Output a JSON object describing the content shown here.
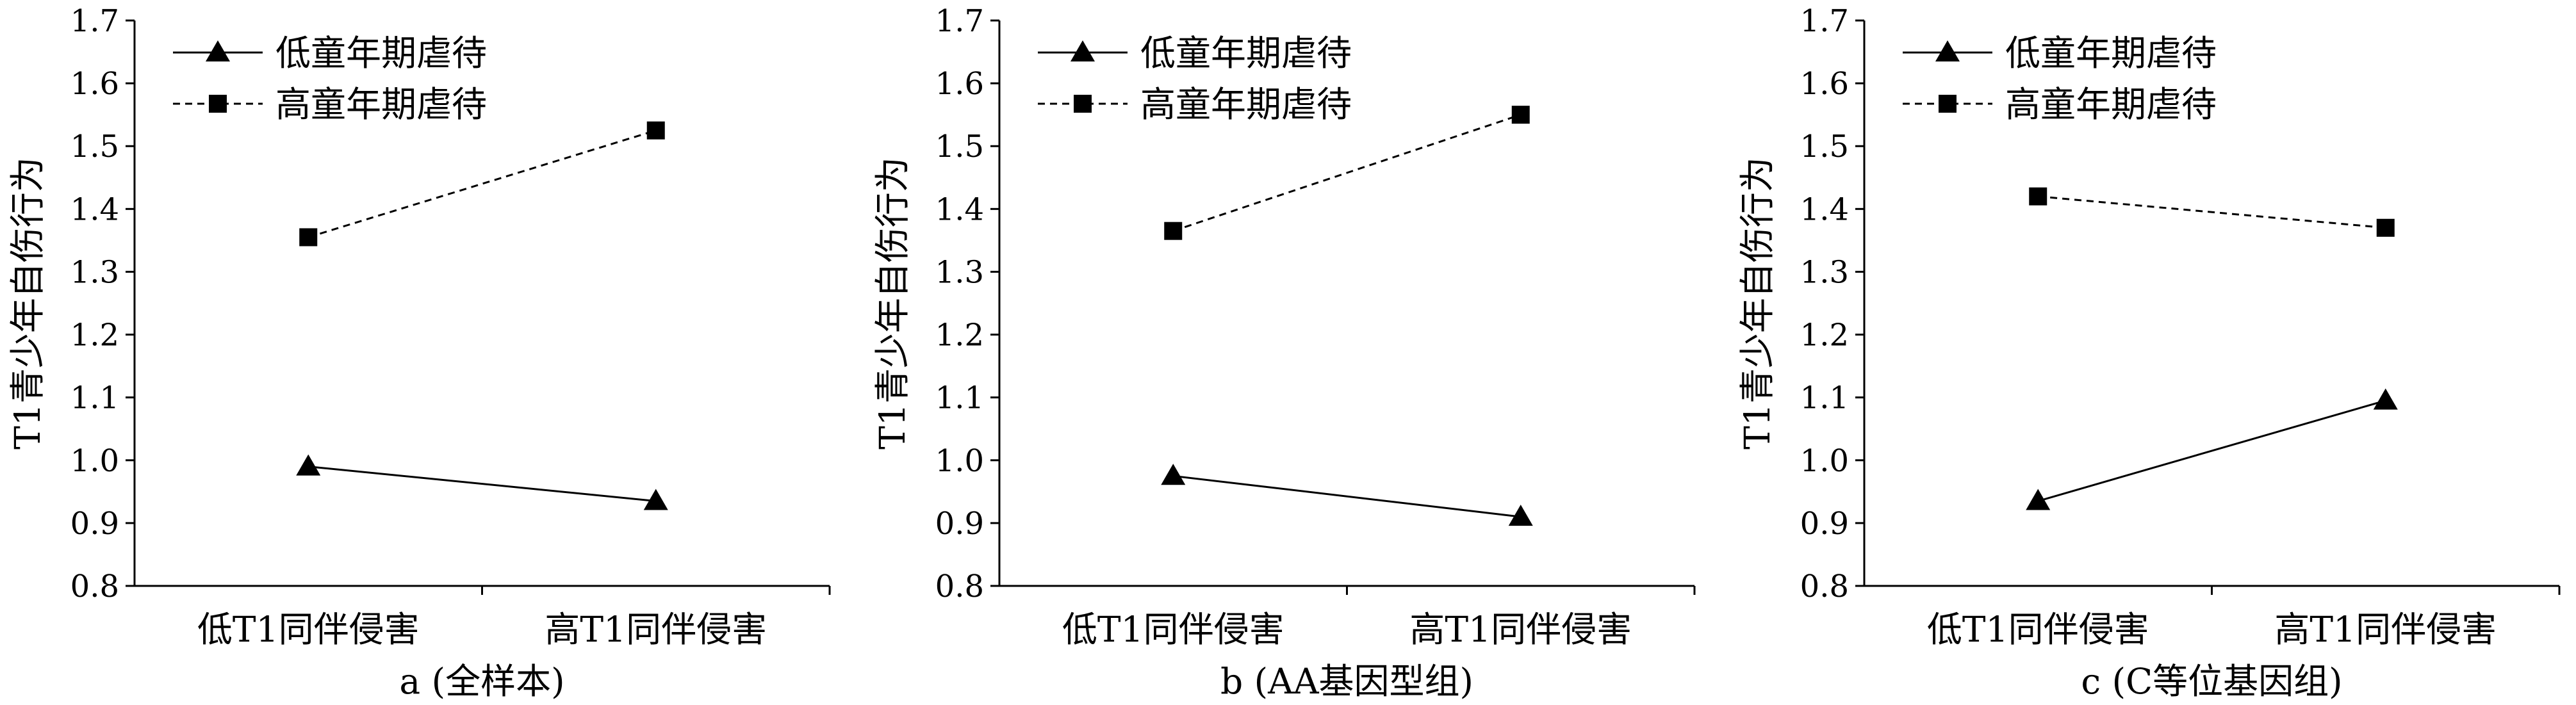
{
  "chart_data": [
    {
      "type": "line",
      "title": "a (全样本)",
      "ylabel": "T1青少年自伤行为",
      "categories": [
        "低T1同伴侵害",
        "高T1同伴侵害"
      ],
      "ylim": [
        0.8,
        1.7
      ],
      "yticks": [
        "0.8",
        "0.9",
        "1.0",
        "1.1",
        "1.2",
        "1.3",
        "1.4",
        "1.5",
        "1.6",
        "1.7"
      ],
      "legend_position": "top-left",
      "series": [
        {
          "name": "低童年期虐待",
          "values": [
            0.99,
            0.935
          ],
          "marker": "triangle",
          "line": "solid"
        },
        {
          "name": "高童年期虐待",
          "values": [
            1.355,
            1.525
          ],
          "marker": "square",
          "line": "dashed"
        }
      ]
    },
    {
      "type": "line",
      "title": "b (AA基因型组)",
      "ylabel": "T1青少年自伤行为",
      "categories": [
        "低T1同伴侵害",
        "高T1同伴侵害"
      ],
      "ylim": [
        0.8,
        1.7
      ],
      "yticks": [
        "0.8",
        "0.9",
        "1.0",
        "1.1",
        "1.2",
        "1.3",
        "1.4",
        "1.5",
        "1.6",
        "1.7"
      ],
      "legend_position": "top-left",
      "series": [
        {
          "name": "低童年期虐待",
          "values": [
            0.975,
            0.91
          ],
          "marker": "triangle",
          "line": "solid"
        },
        {
          "name": "高童年期虐待",
          "values": [
            1.365,
            1.55
          ],
          "marker": "square",
          "line": "dashed"
        }
      ]
    },
    {
      "type": "line",
      "title": "c (C等位基因组)",
      "ylabel": "T1青少年自伤行为",
      "categories": [
        "低T1同伴侵害",
        "高T1同伴侵害"
      ],
      "ylim": [
        0.8,
        1.7
      ],
      "yticks": [
        "0.8",
        "0.9",
        "1.0",
        "1.1",
        "1.2",
        "1.3",
        "1.4",
        "1.5",
        "1.6",
        "1.7"
      ],
      "legend_position": "top-left",
      "series": [
        {
          "name": "低童年期虐待",
          "values": [
            0.935,
            1.095
          ],
          "marker": "triangle",
          "line": "solid"
        },
        {
          "name": "高童年期虐待",
          "values": [
            1.42,
            1.37
          ],
          "marker": "square",
          "line": "dashed"
        }
      ]
    }
  ]
}
